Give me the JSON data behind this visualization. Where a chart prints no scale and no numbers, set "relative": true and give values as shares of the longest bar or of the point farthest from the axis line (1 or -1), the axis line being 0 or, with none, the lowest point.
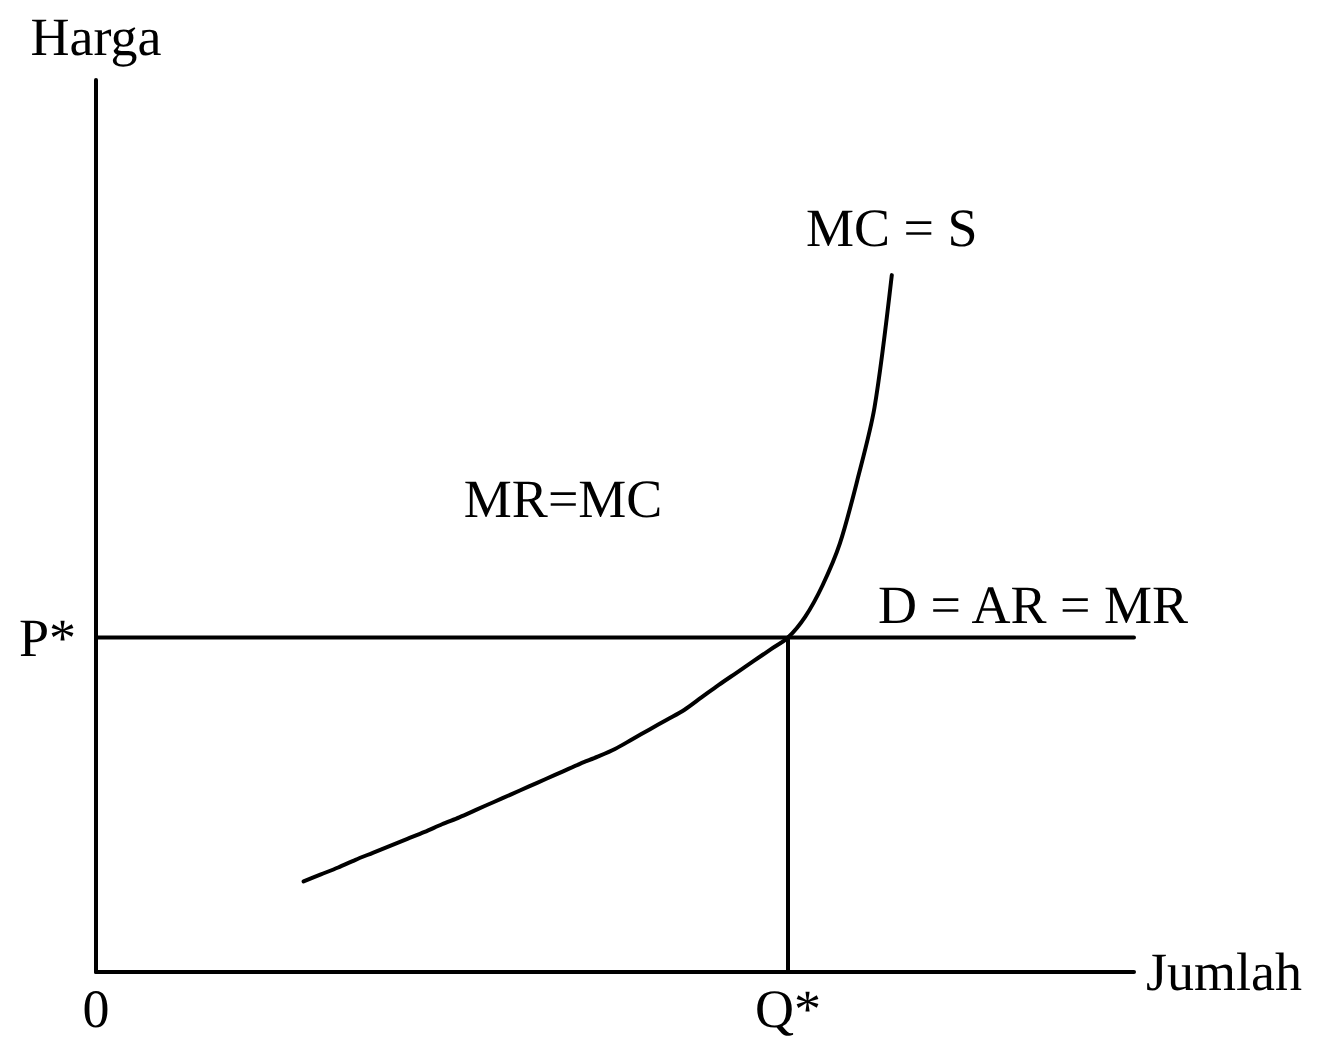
{
  "chart_data": {
    "type": "line",
    "relative": true,
    "ylabel": "Harga",
    "xlabel": "Jumlah",
    "annotations": [
      {
        "text": "P*",
        "x": "0",
        "y": 0.48
      },
      "MR=MC"
    ],
    "categories": [
      "0",
      null,
      null,
      null,
      null,
      null,
      null,
      null,
      null,
      null,
      null,
      null,
      null,
      null,
      null,
      null,
      null,
      null,
      null,
      null,
      null,
      null,
      null,
      null,
      null,
      null,
      null,
      null,
      null,
      null,
      null,
      null,
      null,
      null,
      null,
      null,
      null,
      null,
      null,
      null,
      "Q*",
      null,
      null,
      null,
      null,
      null,
      null,
      null,
      null,
      null,
      null,
      null,
      null,
      null,
      null,
      null,
      null,
      null,
      null,
      null,
      null
    ],
    "series": [
      {
        "name": "MC = S",
        "color": "#000000",
        "values": [
          null,
          null,
          null,
          null,
          null,
          null,
          null,
          null,
          null,
          null,
          null,
          null,
          0.13,
          0.14,
          0.15,
          0.161,
          0.171,
          0.181,
          0.191,
          0.201,
          0.212,
          0.222,
          0.233,
          0.244,
          0.255,
          0.266,
          0.277,
          0.288,
          0.299,
          0.309,
          0.32,
          0.334,
          0.348,
          0.362,
          0.376,
          0.394,
          0.412,
          0.429,
          0.446,
          0.463,
          0.48,
          0.51,
          0.555,
          0.615,
          0.705,
          0.81,
          1,
          null,
          null,
          null,
          null,
          null,
          null,
          null,
          null,
          null,
          null,
          null,
          null,
          null,
          null
        ]
      },
      {
        "name": "D = AR = MR",
        "color": "#000000",
        "values": [
          0.48,
          0.48,
          0.48,
          0.48,
          0.48,
          0.48,
          0.48,
          0.48,
          0.48,
          0.48,
          0.48,
          0.48,
          0.48,
          0.48,
          0.48,
          0.48,
          0.48,
          0.48,
          0.48,
          0.48,
          0.48,
          0.48,
          0.48,
          0.48,
          0.48,
          0.48,
          0.48,
          0.48,
          0.48,
          0.48,
          0.48,
          0.48,
          0.48,
          0.48,
          0.48,
          0.48,
          0.48,
          0.48,
          0.48,
          0.48,
          0.48,
          0.48,
          0.48,
          0.48,
          0.48,
          0.48,
          0.48,
          0.48,
          0.48,
          0.48,
          0.48,
          0.48,
          0.48,
          0.48,
          0.48,
          0.48,
          0.48,
          0.48,
          0.48,
          0.48,
          0.48
        ]
      },
      {
        "color": "#000000",
        "x": [
          "Q*",
          "Q*"
        ],
        "values": [
          0,
          0.48
        ]
      }
    ],
    "grid": false,
    "legend": false,
    "marker": "none",
    "line_style": "solid"
  }
}
